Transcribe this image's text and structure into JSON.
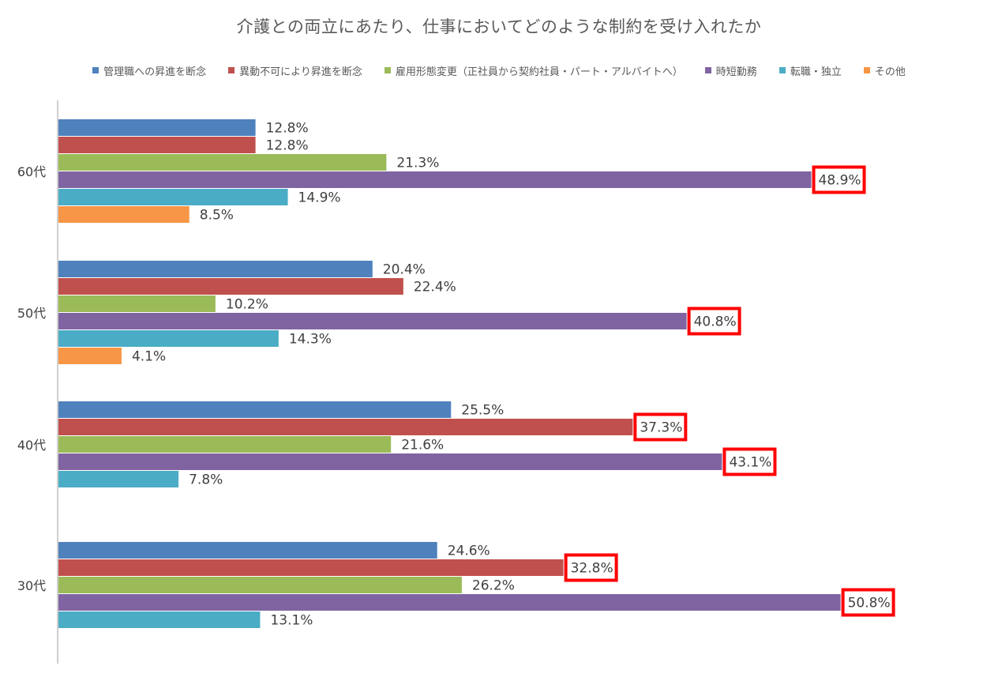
{
  "chart_data": {
    "type": "bar",
    "orientation": "horizontal",
    "title": "介護との両立にあたり、仕事においてどのような制約を受け入れたか",
    "categories": [
      "60代",
      "50代",
      "40代",
      "30代"
    ],
    "series": [
      {
        "name": "管理職への昇進を断念",
        "color": "#4F81BD",
        "values": [
          12.8,
          20.4,
          25.5,
          24.6
        ]
      },
      {
        "name": "異動不可により昇進を断念",
        "color": "#C0504D",
        "values": [
          12.8,
          22.4,
          37.3,
          32.8
        ]
      },
      {
        "name": "雇用形態変更（正社員から契約社員・パート・アルバイトへ）",
        "color": "#9BBB59",
        "values": [
          21.3,
          10.2,
          21.6,
          26.2
        ]
      },
      {
        "name": "時短勤務",
        "color": "#8064A2",
        "values": [
          48.9,
          40.8,
          43.1,
          50.8
        ]
      },
      {
        "name": "転職・独立",
        "color": "#4BACC6",
        "values": [
          14.9,
          14.3,
          7.8,
          13.1
        ]
      },
      {
        "name": "その他",
        "color": "#F79646",
        "values": [
          8.5,
          4.1,
          null,
          null
        ]
      }
    ],
    "value_suffix": "%",
    "highlighted": [
      {
        "category": "60代",
        "series": "時短勤務"
      },
      {
        "category": "50代",
        "series": "時短勤務"
      },
      {
        "category": "40代",
        "series": "異動不可により昇進を断念"
      },
      {
        "category": "40代",
        "series": "時短勤務"
      },
      {
        "category": "30代",
        "series": "異動不可により昇進を断念"
      },
      {
        "category": "30代",
        "series": "時短勤務"
      }
    ],
    "highlight_color": "#FF0000",
    "legend_position": "top",
    "grid": false
  }
}
